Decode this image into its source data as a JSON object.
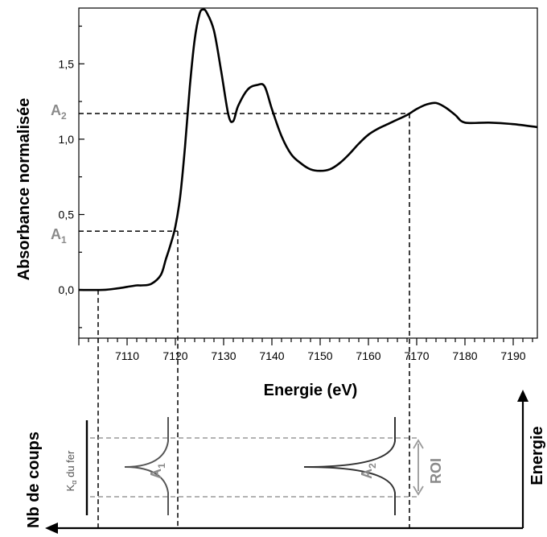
{
  "chart_data": {
    "type": "line",
    "xlabel": "Energie (eV)",
    "ylabel": "Absorbance normalisée",
    "xlim": [
      7100,
      7195
    ],
    "ylim": [
      -0.32,
      1.87
    ],
    "xticks": [
      7110,
      7120,
      7130,
      7140,
      7150,
      7160,
      7170,
      7180,
      7190
    ],
    "yticks": [
      0.0,
      0.5,
      1.0,
      1.5
    ],
    "ytick_labels": [
      "0,0",
      "0,5",
      "1,0",
      "1,5"
    ],
    "xtick_labels": [
      "7110",
      "7120",
      "7130",
      "7140",
      "7150",
      "7160",
      "7170",
      "7180",
      "7190"
    ],
    "series": [
      {
        "x": [
          7100,
          7105,
          7108,
          7110,
          7112,
          7113,
          7115,
          7117,
          7118,
          7119,
          7120,
          7121,
          7122,
          7123,
          7124,
          7125,
          7125.7,
          7126.5,
          7128,
          7129.5,
          7131,
          7132,
          7133,
          7135,
          7137,
          7138.5,
          7140,
          7142,
          7144,
          7146,
          7148,
          7150,
          7152,
          7154,
          7156,
          7158,
          7160,
          7162,
          7164,
          7166,
          7168,
          7170,
          7172,
          7174,
          7176,
          7178,
          7180,
          7185,
          7190,
          7195
        ],
        "y": [
          0.0,
          0.0,
          0.01,
          0.02,
          0.03,
          0.03,
          0.04,
          0.1,
          0.2,
          0.3,
          0.42,
          0.62,
          0.95,
          1.35,
          1.66,
          1.83,
          1.86,
          1.84,
          1.72,
          1.45,
          1.16,
          1.12,
          1.22,
          1.33,
          1.36,
          1.35,
          1.2,
          1.02,
          0.9,
          0.84,
          0.8,
          0.79,
          0.8,
          0.84,
          0.9,
          0.97,
          1.03,
          1.07,
          1.1,
          1.13,
          1.16,
          1.2,
          1.23,
          1.24,
          1.21,
          1.16,
          1.11,
          1.11,
          1.1,
          1.08
        ]
      }
    ],
    "levels": {
      "A1": 0.39,
      "A2": 1.17
    },
    "energy_markers": [
      7104,
      7120.5,
      7168.5
    ],
    "annotations": {
      "a1_label": "A",
      "a1_sub": "1",
      "a2_label": "A",
      "a2_sub": "2"
    }
  },
  "lower_panel": {
    "counts_label": "Nb de coups",
    "energy_label": "Energie",
    "roi_label": "ROI",
    "ka_label_main": "K",
    "ka_label_sub": "α",
    "ka_label_rest": " du fer",
    "peak1_label": "A",
    "peak1_sub": "1",
    "peak2_label": "A",
    "peak2_sub": "2"
  }
}
